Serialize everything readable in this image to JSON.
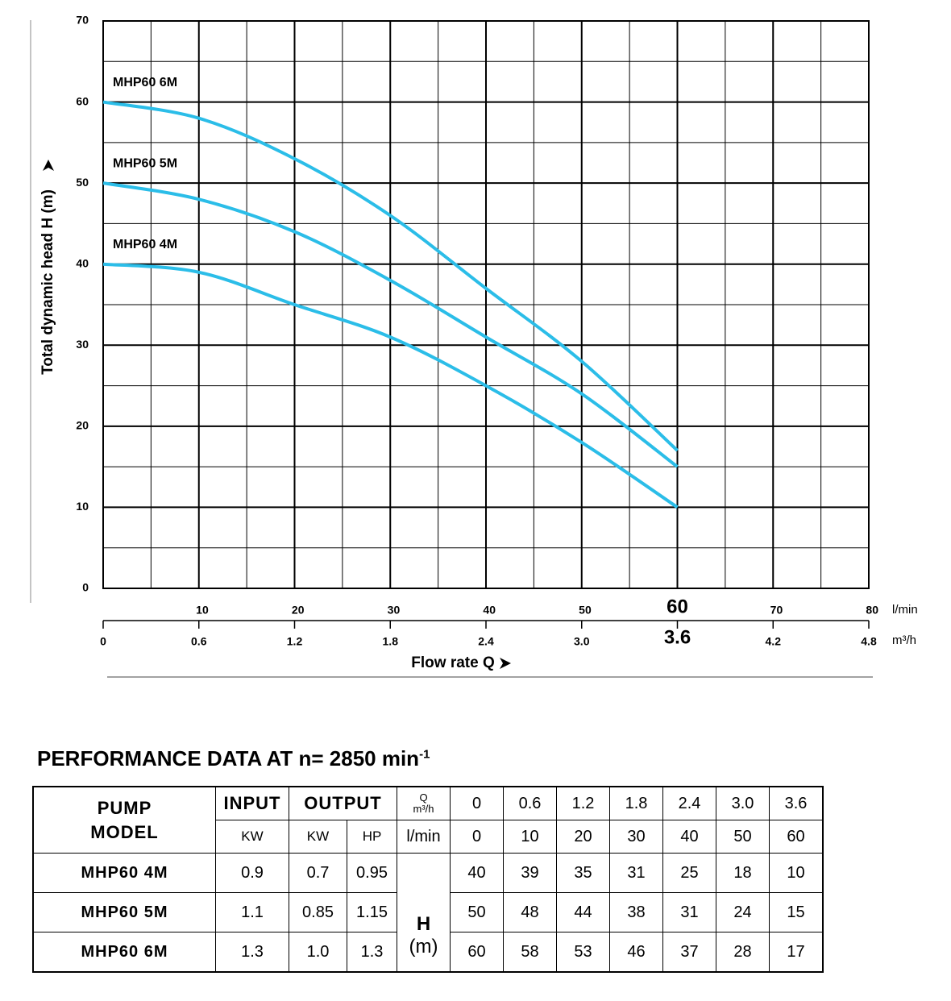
{
  "chart_data": {
    "type": "line",
    "x_label": "Flow rate Q",
    "y_label": "Total dynamic head H (m)",
    "x_unit": "l/min",
    "x2_unit": "m³/h",
    "x": [
      0,
      10,
      20,
      30,
      40,
      50,
      60
    ],
    "series": [
      {
        "name": "MHP60 6M",
        "color": "#2bbde8",
        "values": [
          60,
          58,
          53,
          46,
          37,
          28,
          17
        ]
      },
      {
        "name": "MHP60 5M",
        "color": "#2bbde8",
        "values": [
          50,
          48,
          44,
          38,
          31,
          24,
          15
        ]
      },
      {
        "name": "MHP60 4M",
        "color": "#2bbde8",
        "values": [
          40,
          39,
          35,
          31,
          25,
          18,
          10
        ]
      }
    ],
    "xlim": [
      0,
      80
    ],
    "xticks": [
      10,
      20,
      30,
      40,
      50,
      60,
      70,
      80
    ],
    "x2lim": [
      0,
      4.8
    ],
    "x2ticks": [
      0,
      0.6,
      1.2,
      1.8,
      2.4,
      {
        "value": 3.0,
        "label": "3.0"
      },
      3.6,
      4.2,
      4.8
    ],
    "highlight_x": 60,
    "highlight_x2": 3.6,
    "ylim": [
      0,
      70
    ],
    "yticks": [
      0,
      10,
      20,
      30,
      40,
      50,
      60,
      70
    ],
    "xminor": [
      5,
      15,
      25,
      35,
      45,
      55,
      65,
      75
    ],
    "yminor": [
      5,
      15,
      25,
      35,
      45,
      55,
      65
    ],
    "grid": true
  },
  "table": {
    "title": "PERFORMANCE DATA AT n= 2850 min",
    "title_sup": "-1",
    "head": {
      "model": "PUMP MODEL",
      "input": "INPUT",
      "output": "OUTPUT",
      "q": "Q",
      "q_unit": "m³/h",
      "lmin_unit": "l/min",
      "input_unit": "KW",
      "output_units": [
        "KW",
        "HP"
      ],
      "q_m3h": [
        "0",
        "0.6",
        "1.2",
        "1.8",
        "2.4",
        "3.0",
        "3.6"
      ],
      "q_lmin": [
        "0",
        "10",
        "20",
        "30",
        "40",
        "50",
        "60"
      ]
    },
    "h_label": "H",
    "h_unit": "(m)",
    "rows": [
      [
        "MHP60 4M",
        "0.9",
        "0.7",
        "0.95",
        "40",
        "39",
        "35",
        "31",
        "25",
        "18",
        "10"
      ],
      [
        "MHP60 5M",
        "1.1",
        "0.85",
        "1.15",
        "50",
        "48",
        "44",
        "38",
        "31",
        "24",
        "15"
      ],
      [
        "MHP60 6M",
        "1.3",
        "1.0",
        "1.3",
        "60",
        "58",
        "53",
        "46",
        "37",
        "28",
        "17"
      ]
    ]
  }
}
